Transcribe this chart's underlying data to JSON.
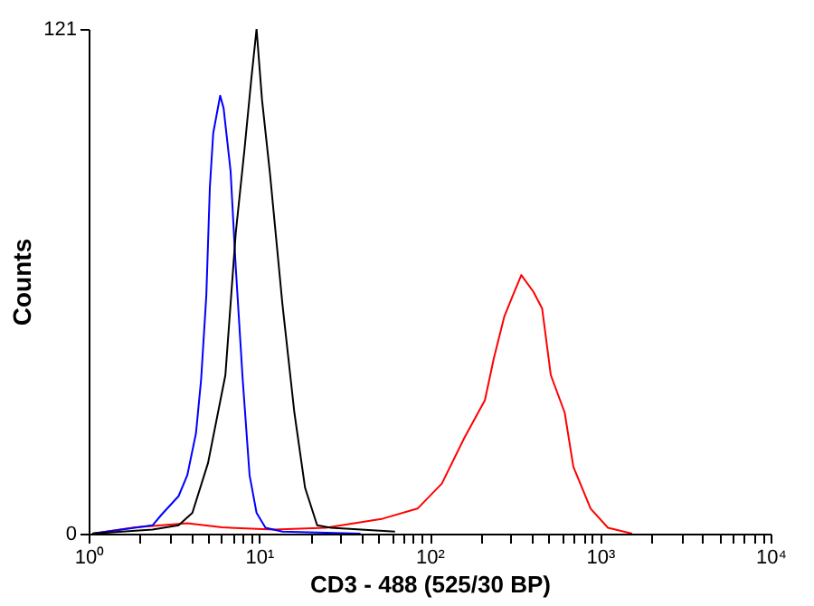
{
  "chart_data": {
    "type": "line",
    "xlabel": "CD3 - 488 (525/30 BP)",
    "ylabel": "Counts",
    "log": "x",
    "grid": false,
    "marker": "none",
    "line_style": "solid",
    "xlim": [
      1,
      10000
    ],
    "ylim": [
      0,
      121
    ],
    "yticks": [
      0,
      121
    ],
    "xticks": [
      {
        "value": 1,
        "label": "10⁰"
      },
      {
        "value": 2,
        "label": null
      },
      {
        "value": 3,
        "label": null
      },
      {
        "value": 4,
        "label": null
      },
      {
        "value": 5,
        "label": null
      },
      {
        "value": 6,
        "label": null
      },
      {
        "value": 7,
        "label": null
      },
      {
        "value": 8,
        "label": null
      },
      {
        "value": 9,
        "label": null
      },
      {
        "value": 10,
        "label": "10¹"
      },
      {
        "value": 20,
        "label": null
      },
      {
        "value": 30,
        "label": null
      },
      {
        "value": 40,
        "label": null
      },
      {
        "value": 50,
        "label": null
      },
      {
        "value": 60,
        "label": null
      },
      {
        "value": 70,
        "label": null
      },
      {
        "value": 80,
        "label": null
      },
      {
        "value": 90,
        "label": null
      },
      {
        "value": 100,
        "label": "10²"
      },
      {
        "value": 200,
        "label": null
      },
      {
        "value": 300,
        "label": null
      },
      {
        "value": 400,
        "label": null
      },
      {
        "value": 500,
        "label": null
      },
      {
        "value": 600,
        "label": null
      },
      {
        "value": 700,
        "label": null
      },
      {
        "value": 800,
        "label": null
      },
      {
        "value": 900,
        "label": null
      },
      {
        "value": 1000,
        "label": "10³"
      },
      {
        "value": 2000,
        "label": null
      },
      {
        "value": 3000,
        "label": null
      },
      {
        "value": 4000,
        "label": null
      },
      {
        "value": 5000,
        "label": null
      },
      {
        "value": 6000,
        "label": null
      },
      {
        "value": 7000,
        "label": null
      },
      {
        "value": 8000,
        "label": null
      },
      {
        "value": 9000,
        "label": null
      },
      {
        "value": 10000,
        "label": "10⁴"
      }
    ],
    "series": [
      {
        "color": "#ff0000",
        "x": [
          1.05,
          1.88,
          3.79,
          6.05,
          12.2,
          24.6,
          53.2,
          84.9,
          118,
          160,
          211,
          238,
          274,
          307,
          345,
          406,
          457,
          514,
          620,
          697,
          880,
          1112,
          1542
        ],
        "values": [
          0,
          1.5,
          2.5,
          1.5,
          1,
          1.4,
          3.6,
          6,
          12,
          23,
          32,
          42,
          52,
          57,
          62,
          58,
          54,
          38,
          29,
          16,
          6,
          1.4,
          0
        ]
      },
      {
        "color": "#0000ff",
        "x": [
          1.05,
          2.37,
          2.67,
          3.37,
          3.79,
          4.26,
          4.57,
          4.9,
          5.14,
          5.38,
          5.91,
          6.19,
          6.8,
          7.29,
          8.01,
          8.79,
          9.66,
          10.9,
          13.7,
          39.3
        ],
        "values": [
          0,
          2,
          4.5,
          9,
          14,
          24,
          37,
          57,
          83,
          96,
          105,
          102,
          87,
          64,
          37,
          14,
          5,
          1.4,
          0.5,
          0
        ]
      },
      {
        "color": "#000000",
        "x": [
          1.05,
          2.37,
          3.37,
          4.06,
          5.02,
          6.34,
          7.29,
          8.2,
          9.0,
          9.66,
          10.4,
          11.6,
          13.7,
          16.1,
          18.6,
          21.9,
          26.4,
          62.7
        ],
        "values": [
          0,
          1,
          2,
          5,
          17,
          38,
          72,
          92,
          109,
          121,
          104,
          86,
          55,
          29,
          11,
          2,
          1.4,
          0.5
        ]
      }
    ]
  }
}
